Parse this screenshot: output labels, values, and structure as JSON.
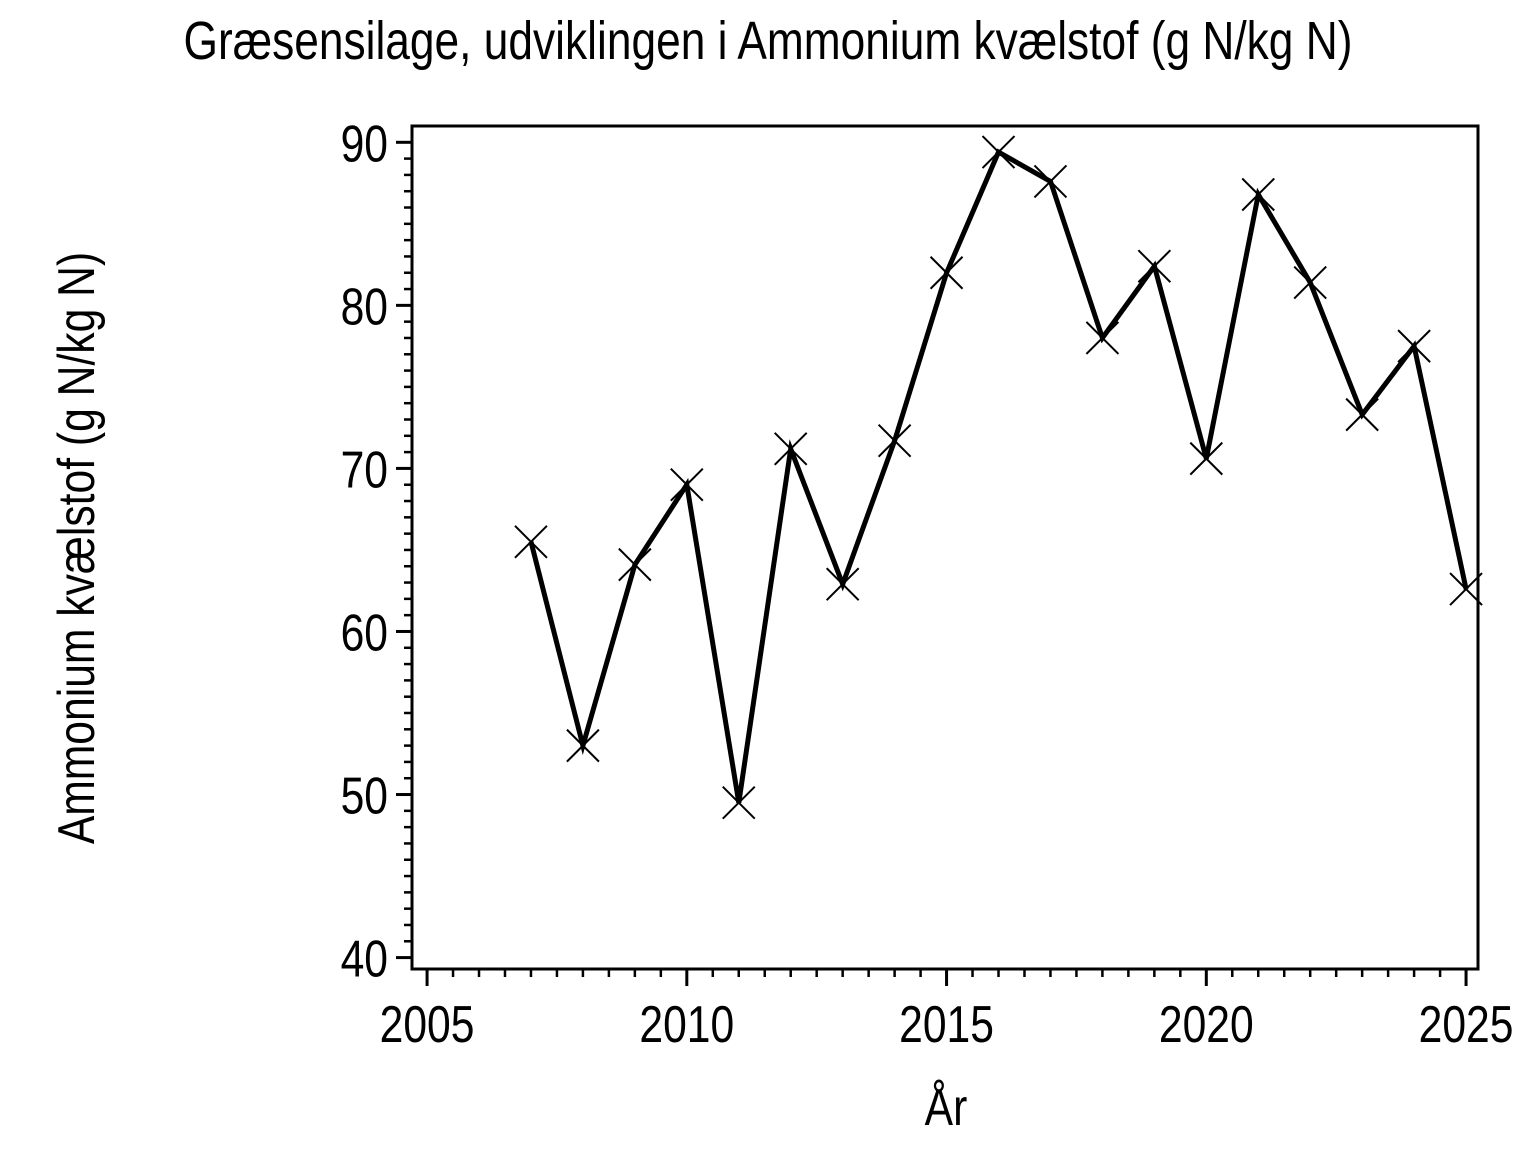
{
  "page": {
    "background": "#ffffff",
    "foreground": "#000000"
  },
  "chart_data": {
    "type": "line",
    "title": "Græsensilage, udviklingen i Ammonium kvælstof (g N/kg N)",
    "xlabel": "År",
    "ylabel": "Ammonium kvælstof (g N/kg N)",
    "series": [
      {
        "name": "Ammonium kvælstof (g N/kg N)",
        "x": [
          2007,
          2008,
          2009,
          2010,
          2011,
          2012,
          2013,
          2014,
          2015,
          2016,
          2017,
          2018,
          2019,
          2020,
          2021,
          2022,
          2023,
          2024,
          2025
        ],
        "y": [
          65.5,
          53.0,
          64.1,
          69.0,
          49.5,
          71.2,
          62.9,
          71.7,
          82.0,
          89.4,
          87.6,
          78.0,
          82.4,
          70.6,
          86.8,
          81.4,
          73.3,
          77.5,
          62.6
        ],
        "color": "#000000",
        "marker": "x",
        "line_width": 5
      }
    ],
    "xlim": [
      2004.71,
      2025.23
    ],
    "ylim": [
      39.3,
      91.0
    ],
    "x_major_ticks": [
      2005,
      2010,
      2015,
      2020,
      2025
    ],
    "x_tick_labels": [
      "2005",
      "2010",
      "2015",
      "2020",
      "2025"
    ],
    "x_minor_tick_step": 0.5,
    "y_major_ticks": [
      40,
      50,
      60,
      70,
      80,
      90
    ],
    "y_tick_labels": [
      "40",
      "50",
      "60",
      "70",
      "80",
      "90"
    ],
    "y_minor_tick_step": 1,
    "grid": false,
    "legend": "none"
  }
}
